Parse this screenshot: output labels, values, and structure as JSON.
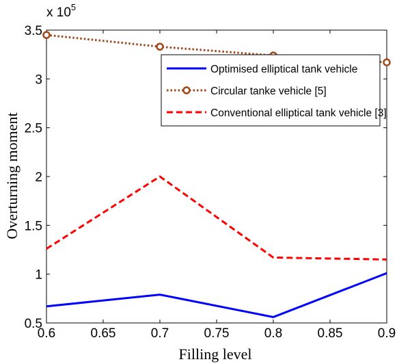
{
  "chart_data": {
    "type": "line",
    "title": "",
    "xlabel": "Filling level",
    "ylabel": "Overturning moment",
    "scale_base": "x 10",
    "scale_exponent": "5",
    "xlim": [
      0.6,
      0.9
    ],
    "ylim": [
      0.5,
      3.5
    ],
    "x_ticks": [
      "0.6",
      "0.65",
      "0.7",
      "0.75",
      "0.8",
      "0.85",
      "0.9"
    ],
    "y_ticks": [
      "0.5",
      "1",
      "1.5",
      "2",
      "2.5",
      "3",
      "3.5"
    ],
    "x_tick_values": [
      0.6,
      0.65,
      0.7,
      0.75,
      0.8,
      0.85,
      0.9
    ],
    "y_tick_values": [
      0.5,
      1,
      1.5,
      2,
      2.5,
      3,
      3.5
    ],
    "grid": false,
    "legend_position": "top-right",
    "x": [
      0.6,
      0.7,
      0.8,
      0.9
    ],
    "series": [
      {
        "name": "Optimised elliptical tank vehicle",
        "values": [
          0.67,
          0.79,
          0.56,
          1.01
        ],
        "color": "#0000ff",
        "style": "solid",
        "marker": "none"
      },
      {
        "name": "Circular tanke vehicle [5]",
        "values": [
          3.45,
          3.33,
          3.24,
          3.17
        ],
        "color": "#a0481a",
        "style": "dotted",
        "marker": "circle"
      },
      {
        "name": "Conventional elliptical tank vehicle [3]",
        "values": [
          1.26,
          2.0,
          1.17,
          1.15
        ],
        "color": "#ff0000",
        "style": "dashed",
        "marker": "none"
      }
    ]
  }
}
